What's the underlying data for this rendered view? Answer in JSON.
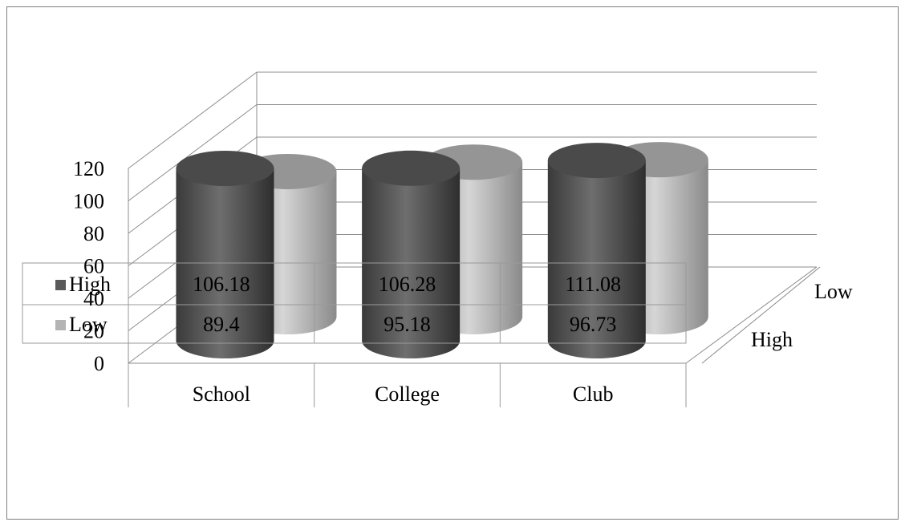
{
  "chart_data": {
    "type": "bar",
    "style": "3d-cylinder",
    "categories": [
      "School",
      "College",
      "Club"
    ],
    "series": [
      {
        "name": "High",
        "values": [
          106.18,
          106.28,
          111.08
        ],
        "color": "#5a5a5a"
      },
      {
        "name": "Low",
        "values": [
          89.4,
          95.18,
          96.73
        ],
        "color": "#b4b4b4"
      }
    ],
    "depth_labels": [
      "High",
      "Low"
    ],
    "yticks": [
      "0",
      "20",
      "40",
      "60",
      "80",
      "100",
      "120"
    ],
    "ylim": [
      0,
      120
    ],
    "grid": true,
    "legend": "data-table"
  }
}
